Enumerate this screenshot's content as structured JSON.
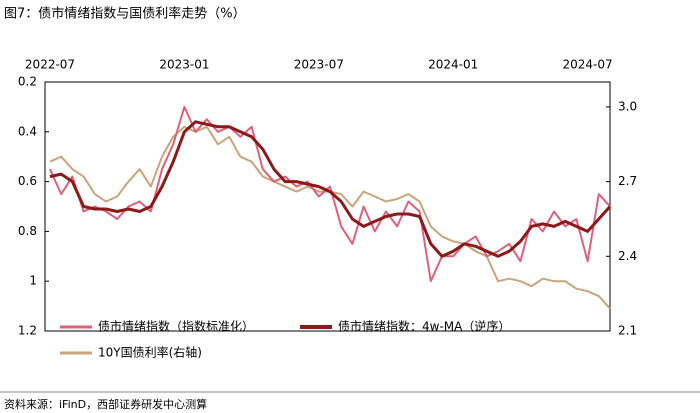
{
  "chart_data": {
    "type": "line",
    "title": "图7：债市情绪指数与国债利率走势（%）",
    "source": "资料来源：iFinD，西部证券研发中心测算",
    "categories": [
      "2022-07",
      null,
      null,
      null,
      null,
      null,
      null,
      null,
      null,
      null,
      null,
      null,
      "2023-01",
      null,
      null,
      null,
      null,
      null,
      null,
      null,
      null,
      null,
      null,
      null,
      "2023-07",
      null,
      null,
      null,
      null,
      null,
      null,
      null,
      null,
      null,
      null,
      null,
      "2024-01",
      null,
      null,
      null,
      null,
      null,
      null,
      null,
      null,
      null,
      null,
      null,
      "2024-07",
      null,
      null
    ],
    "ylim": [
      0.2,
      1.2
    ],
    "y_inverted": true,
    "yticks": [
      0.2,
      0.4,
      0.6,
      0.8,
      1,
      1.2
    ],
    "y2lim": [
      2.1,
      3.1
    ],
    "y2ticks": [
      2.1,
      2.4,
      2.7,
      3.0
    ],
    "series": [
      {
        "name": "债市情绪指数（指数标准化）",
        "color": "#e0607a",
        "width": 2,
        "values": [
          0.55,
          0.65,
          0.58,
          0.72,
          0.7,
          0.72,
          0.75,
          0.7,
          0.68,
          0.72,
          0.55,
          0.45,
          0.3,
          0.4,
          0.35,
          0.4,
          0.38,
          0.42,
          0.38,
          0.55,
          0.6,
          0.58,
          0.62,
          0.6,
          0.66,
          0.62,
          0.78,
          0.85,
          0.7,
          0.8,
          0.72,
          0.78,
          0.68,
          0.72,
          1.0,
          0.9,
          0.9,
          0.85,
          0.82,
          0.9,
          0.88,
          0.85,
          0.92,
          0.75,
          0.8,
          0.72,
          0.78,
          0.75,
          0.92,
          0.65,
          0.7
        ]
      },
      {
        "name": "债市情绪指数：4w-MA（逆序）",
        "color": "#8b1a1a",
        "width": 3,
        "values": [
          0.58,
          0.57,
          0.6,
          0.7,
          0.71,
          0.71,
          0.72,
          0.71,
          0.72,
          0.7,
          0.62,
          0.52,
          0.4,
          0.36,
          0.37,
          0.38,
          0.38,
          0.4,
          0.42,
          0.47,
          0.55,
          0.6,
          0.6,
          0.61,
          0.62,
          0.64,
          0.68,
          0.75,
          0.78,
          0.76,
          0.74,
          0.73,
          0.73,
          0.74,
          0.85,
          0.9,
          0.88,
          0.85,
          0.86,
          0.88,
          0.9,
          0.88,
          0.84,
          0.78,
          0.77,
          0.78,
          0.76,
          0.78,
          0.8,
          0.75,
          0.7
        ]
      },
      {
        "name": "10Y国债利率(右轴)",
        "color": "#c8a57a",
        "width": 2,
        "axis": "y2",
        "values": [
          2.78,
          2.8,
          2.75,
          2.72,
          2.65,
          2.62,
          2.64,
          2.7,
          2.75,
          2.68,
          2.8,
          2.88,
          2.92,
          2.9,
          2.92,
          2.85,
          2.88,
          2.8,
          2.78,
          2.72,
          2.7,
          2.68,
          2.66,
          2.68,
          2.66,
          2.66,
          2.65,
          2.6,
          2.66,
          2.64,
          2.62,
          2.63,
          2.65,
          2.62,
          2.52,
          2.48,
          2.46,
          2.45,
          2.42,
          2.4,
          2.3,
          2.31,
          2.3,
          2.28,
          2.31,
          2.3,
          2.3,
          2.27,
          2.26,
          2.24,
          2.19
        ]
      }
    ]
  }
}
